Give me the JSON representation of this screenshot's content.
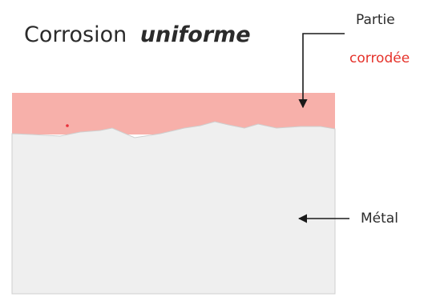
{
  "title": {
    "prefix": "Corrosion",
    "emphasis": "uniforme"
  },
  "labels": {
    "partie": "Partie",
    "corrodee": "corrodée",
    "metal": "Métal"
  },
  "colors": {
    "corroded_layer": "#f7b0aa",
    "metal": "#efefef",
    "metal_border": "#cfcfcf",
    "corroded_text": "#e5322a",
    "text": "#2b2b2b",
    "arrow": "#1a1a1a",
    "defect_dot": "#e8303a"
  }
}
